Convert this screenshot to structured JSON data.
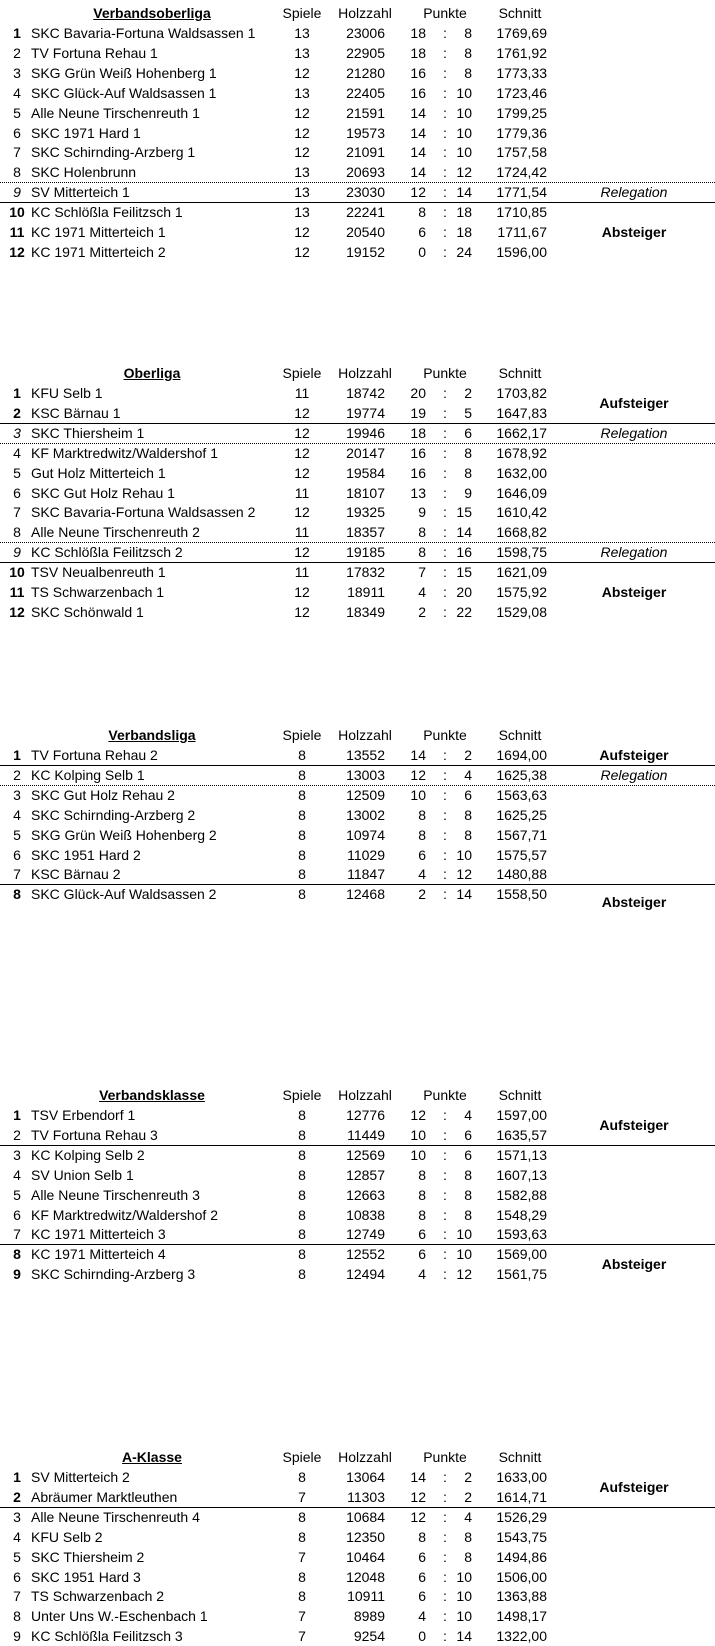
{
  "headers": {
    "spiele": "Spiele",
    "holzzahl": "Holzzahl",
    "punkte": "Punkte",
    "schnitt": "Schnitt"
  },
  "tables": [
    {
      "title": "Verbandsoberliga",
      "rows": [
        {
          "rank": "1",
          "name": "SKC Bavaria-Fortuna Waldsassen 1",
          "spiele": "13",
          "holz": "23006",
          "plus": "18",
          "minus": "8",
          "schnitt": "1769,69",
          "style": "bold"
        },
        {
          "rank": "2",
          "name": "TV Fortuna Rehau 1",
          "spiele": "13",
          "holz": "22905",
          "plus": "18",
          "minus": "8",
          "schnitt": "1761,92",
          "style": ""
        },
        {
          "rank": "3",
          "name": "SKG Grün Weiß Hohenberg 1",
          "spiele": "12",
          "holz": "21280",
          "plus": "16",
          "minus": "8",
          "schnitt": "1773,33",
          "style": ""
        },
        {
          "rank": "4",
          "name": "SKC Glück-Auf Waldsassen 1",
          "spiele": "13",
          "holz": "22405",
          "plus": "16",
          "minus": "10",
          "schnitt": "1723,46",
          "style": ""
        },
        {
          "rank": "5",
          "name": "Alle Neune Tirschenreuth 1",
          "spiele": "12",
          "holz": "21591",
          "plus": "14",
          "minus": "10",
          "schnitt": "1799,25",
          "style": ""
        },
        {
          "rank": "6",
          "name": "SKC 1971 Hard 1",
          "spiele": "12",
          "holz": "19573",
          "plus": "14",
          "minus": "10",
          "schnitt": "1779,36",
          "style": ""
        },
        {
          "rank": "7",
          "name": "SKC Schirnding-Arzberg 1",
          "spiele": "12",
          "holz": "21091",
          "plus": "14",
          "minus": "10",
          "schnitt": "1757,58",
          "style": ""
        },
        {
          "rank": "8",
          "name": "SKC Holenbrunn",
          "spiele": "13",
          "holz": "20693",
          "plus": "14",
          "minus": "12",
          "schnitt": "1724,42",
          "style": ""
        },
        {
          "rank": "9",
          "name": "SV Mitterteich 1",
          "spiele": "13",
          "holz": "23030",
          "plus": "12",
          "minus": "14",
          "schnitt": "1771,54",
          "style": "italic"
        },
        {
          "rank": "10",
          "name": "KC Schlößla Feilitzsch 1",
          "spiele": "13",
          "holz": "22241",
          "plus": "8",
          "minus": "18",
          "schnitt": "1710,85",
          "style": "bold"
        },
        {
          "rank": "11",
          "name": "KC 1971 Mitterteich 1",
          "spiele": "12",
          "holz": "20540",
          "plus": "6",
          "minus": "18",
          "schnitt": "1711,67",
          "style": "bold"
        },
        {
          "rank": "12",
          "name": "KC 1971 Mitterteich 2",
          "spiele": "12",
          "holz": "19152",
          "plus": "0",
          "minus": "24",
          "schnitt": "1596,00",
          "style": "bold"
        }
      ],
      "separators": [
        {
          "after": 8,
          "type": "dotted"
        },
        {
          "after": 9,
          "type": "solid"
        }
      ],
      "notes": [
        {
          "text": "Relegation",
          "ranks": [
            9
          ],
          "style": "italic"
        },
        {
          "text": "Absteiger",
          "ranks": [
            10,
            12
          ],
          "style": "bold"
        }
      ]
    },
    {
      "title": "Oberliga",
      "rows": [
        {
          "rank": "1",
          "name": "KFU Selb 1",
          "spiele": "11",
          "holz": "18742",
          "plus": "20",
          "minus": "2",
          "schnitt": "1703,82",
          "style": "bold"
        },
        {
          "rank": "2",
          "name": "KSC Bärnau 1",
          "spiele": "12",
          "holz": "19774",
          "plus": "19",
          "minus": "5",
          "schnitt": "1647,83",
          "style": "bold"
        },
        {
          "rank": "3",
          "name": "SKC Thiersheim 1",
          "spiele": "12",
          "holz": "19946",
          "plus": "18",
          "minus": "6",
          "schnitt": "1662,17",
          "style": "italic"
        },
        {
          "rank": "4",
          "name": "KF Marktredwitz/Waldershof 1",
          "spiele": "12",
          "holz": "20147",
          "plus": "16",
          "minus": "8",
          "schnitt": "1678,92",
          "style": ""
        },
        {
          "rank": "5",
          "name": "Gut Holz Mitterteich 1",
          "spiele": "12",
          "holz": "19584",
          "plus": "16",
          "minus": "8",
          "schnitt": "1632,00",
          "style": ""
        },
        {
          "rank": "6",
          "name": "SKC Gut Holz Rehau 1",
          "spiele": "11",
          "holz": "18107",
          "plus": "13",
          "minus": "9",
          "schnitt": "1646,09",
          "style": ""
        },
        {
          "rank": "7",
          "name": "SKC Bavaria-Fortuna Waldsassen 2",
          "spiele": "12",
          "holz": "19325",
          "plus": "9",
          "minus": "15",
          "schnitt": "1610,42",
          "style": ""
        },
        {
          "rank": "8",
          "name": "Alle Neune Tirschenreuth 2",
          "spiele": "11",
          "holz": "18357",
          "plus": "8",
          "minus": "14",
          "schnitt": "1668,82",
          "style": ""
        },
        {
          "rank": "9",
          "name": "KC Schlößla Feilitzsch 2",
          "spiele": "12",
          "holz": "19185",
          "plus": "8",
          "minus": "16",
          "schnitt": "1598,75",
          "style": "italic"
        },
        {
          "rank": "10",
          "name": "TSV Neualbenreuth 1",
          "spiele": "11",
          "holz": "17832",
          "plus": "7",
          "minus": "15",
          "schnitt": "1621,09",
          "style": "bold"
        },
        {
          "rank": "11",
          "name": "TS Schwarzenbach 1",
          "spiele": "12",
          "holz": "18911",
          "plus": "4",
          "minus": "20",
          "schnitt": "1575,92",
          "style": "bold"
        },
        {
          "rank": "12",
          "name": "SKC Schönwald 1",
          "spiele": "12",
          "holz": "18349",
          "plus": "2",
          "minus": "22",
          "schnitt": "1529,08",
          "style": "bold"
        }
      ],
      "separators": [
        {
          "after": 2,
          "type": "solid"
        },
        {
          "after": 3,
          "type": "dotted"
        },
        {
          "after": 8,
          "type": "dotted"
        },
        {
          "after": 9,
          "type": "solid"
        }
      ],
      "notes": [
        {
          "text": "Aufsteiger",
          "ranks": [
            1,
            2
          ],
          "style": "bold"
        },
        {
          "text": "Relegation",
          "ranks": [
            3
          ],
          "style": "italic"
        },
        {
          "text": "Relegation",
          "ranks": [
            9
          ],
          "style": "italic"
        },
        {
          "text": "Absteiger",
          "ranks": [
            10,
            12
          ],
          "style": "bold"
        }
      ]
    },
    {
      "title": "Verbandsliga",
      "rows": [
        {
          "rank": "1",
          "name": "TV Fortuna Rehau 2",
          "spiele": "8",
          "holz": "13552",
          "plus": "14",
          "minus": "2",
          "schnitt": "1694,00",
          "style": "bold"
        },
        {
          "rank": "2",
          "name": "KC Kolping Selb 1",
          "spiele": "8",
          "holz": "13003",
          "plus": "12",
          "minus": "4",
          "schnitt": "1625,38",
          "style": ""
        },
        {
          "rank": "3",
          "name": "SKC Gut Holz Rehau 2",
          "spiele": "8",
          "holz": "12509",
          "plus": "10",
          "minus": "6",
          "schnitt": "1563,63",
          "style": ""
        },
        {
          "rank": "4",
          "name": "SKC Schirnding-Arzberg 2",
          "spiele": "8",
          "holz": "13002",
          "plus": "8",
          "minus": "8",
          "schnitt": "1625,25",
          "style": ""
        },
        {
          "rank": "5",
          "name": "SKG Grün Weiß Hohenberg 2",
          "spiele": "8",
          "holz": "10974",
          "plus": "8",
          "minus": "8",
          "schnitt": "1567,71",
          "style": ""
        },
        {
          "rank": "6",
          "name": "SKC 1951 Hard 2",
          "spiele": "8",
          "holz": "11029",
          "plus": "6",
          "minus": "10",
          "schnitt": "1575,57",
          "style": ""
        },
        {
          "rank": "7",
          "name": "KSC Bärnau 2",
          "spiele": "8",
          "holz": "11847",
          "plus": "4",
          "minus": "12",
          "schnitt": "1480,88",
          "style": ""
        },
        {
          "rank": "8",
          "name": "SKC Glück-Auf Waldsassen 2",
          "spiele": "8",
          "holz": "12468",
          "plus": "2",
          "minus": "14",
          "schnitt": "1558,50",
          "style": "bold"
        }
      ],
      "separators": [
        {
          "after": 1,
          "type": "solid"
        },
        {
          "after": 2,
          "type": "dotted"
        },
        {
          "after": 7,
          "type": "solid"
        }
      ],
      "notes": [
        {
          "text": "Aufsteiger",
          "ranks": [
            1
          ],
          "style": "bold"
        },
        {
          "text": "Relegation",
          "ranks": [
            2
          ],
          "style": "italic"
        },
        {
          "text": "Absteiger",
          "ranks": [
            8
          ],
          "style": "bold"
        }
      ]
    },
    {
      "title": "Verbandsklasse",
      "rows": [
        {
          "rank": "1",
          "name": "TSV Erbendorf 1",
          "spiele": "8",
          "holz": "12776",
          "plus": "12",
          "minus": "4",
          "schnitt": "1597,00",
          "style": "bold"
        },
        {
          "rank": "2",
          "name": "TV Fortuna Rehau 3",
          "spiele": "8",
          "holz": "11449",
          "plus": "10",
          "minus": "6",
          "schnitt": "1635,57",
          "style": ""
        },
        {
          "rank": "3",
          "name": "KC Kolping Selb 2",
          "spiele": "8",
          "holz": "12569",
          "plus": "10",
          "minus": "6",
          "schnitt": "1571,13",
          "style": ""
        },
        {
          "rank": "4",
          "name": "SV Union Selb 1",
          "spiele": "8",
          "holz": "12857",
          "plus": "8",
          "minus": "8",
          "schnitt": "1607,13",
          "style": ""
        },
        {
          "rank": "5",
          "name": "Alle Neune Tirschenreuth 3",
          "spiele": "8",
          "holz": "12663",
          "plus": "8",
          "minus": "8",
          "schnitt": "1582,88",
          "style": ""
        },
        {
          "rank": "6",
          "name": "KF Marktredwitz/Waldershof 2",
          "spiele": "8",
          "holz": "10838",
          "plus": "8",
          "minus": "8",
          "schnitt": "1548,29",
          "style": ""
        },
        {
          "rank": "7",
          "name": "KC 1971 Mitterteich 3",
          "spiele": "8",
          "holz": "12749",
          "plus": "6",
          "minus": "10",
          "schnitt": "1593,63",
          "style": ""
        },
        {
          "rank": "8",
          "name": "KC 1971 Mitterteich 4",
          "spiele": "8",
          "holz": "12552",
          "plus": "6",
          "minus": "10",
          "schnitt": "1569,00",
          "style": "bold"
        },
        {
          "rank": "9",
          "name": "SKC Schirnding-Arzberg 3",
          "spiele": "8",
          "holz": "12494",
          "plus": "4",
          "minus": "12",
          "schnitt": "1561,75",
          "style": "bold"
        }
      ],
      "separators": [
        {
          "after": 2,
          "type": "solid"
        },
        {
          "after": 7,
          "type": "solid"
        }
      ],
      "notes": [
        {
          "text": "Aufsteiger",
          "ranks": [
            1,
            2
          ],
          "style": "bold"
        },
        {
          "text": "Absteiger",
          "ranks": [
            8,
            9
          ],
          "style": "bold"
        }
      ]
    },
    {
      "title": "A-Klasse",
      "rows": [
        {
          "rank": "1",
          "name": "SV Mitterteich 2",
          "spiele": "8",
          "holz": "13064",
          "plus": "14",
          "minus": "2",
          "schnitt": "1633,00",
          "style": "bold"
        },
        {
          "rank": "2",
          "name": "Abräumer Marktleuthen",
          "spiele": "7",
          "holz": "11303",
          "plus": "12",
          "minus": "2",
          "schnitt": "1614,71",
          "style": "bold"
        },
        {
          "rank": "3",
          "name": "Alle Neune Tirschenreuth 4",
          "spiele": "8",
          "holz": "10684",
          "plus": "12",
          "minus": "4",
          "schnitt": "1526,29",
          "style": ""
        },
        {
          "rank": "4",
          "name": "KFU Selb 2",
          "spiele": "8",
          "holz": "12350",
          "plus": "8",
          "minus": "8",
          "schnitt": "1543,75",
          "style": ""
        },
        {
          "rank": "5",
          "name": "SKC Thiersheim 2",
          "spiele": "7",
          "holz": "10464",
          "plus": "6",
          "minus": "8",
          "schnitt": "1494,86",
          "style": ""
        },
        {
          "rank": "6",
          "name": "SKC 1951 Hard 3",
          "spiele": "8",
          "holz": "12048",
          "plus": "6",
          "minus": "10",
          "schnitt": "1506,00",
          "style": ""
        },
        {
          "rank": "7",
          "name": "TS Schwarzenbach 2",
          "spiele": "8",
          "holz": "10911",
          "plus": "6",
          "minus": "10",
          "schnitt": "1363,88",
          "style": ""
        },
        {
          "rank": "8",
          "name": "Unter Uns W.-Eschenbach 1",
          "spiele": "7",
          "holz": "8989",
          "plus": "4",
          "minus": "10",
          "schnitt": "1498,17",
          "style": ""
        },
        {
          "rank": "9",
          "name": "KC Schlößla Feilitzsch 3",
          "spiele": "7",
          "holz": "9254",
          "plus": "0",
          "minus": "14",
          "schnitt": "1322,00",
          "style": ""
        }
      ],
      "separators": [
        {
          "after": 2,
          "type": "solid"
        }
      ],
      "notes": [
        {
          "text": "Aufsteiger",
          "ranks": [
            1,
            2
          ],
          "style": "bold"
        }
      ]
    }
  ]
}
